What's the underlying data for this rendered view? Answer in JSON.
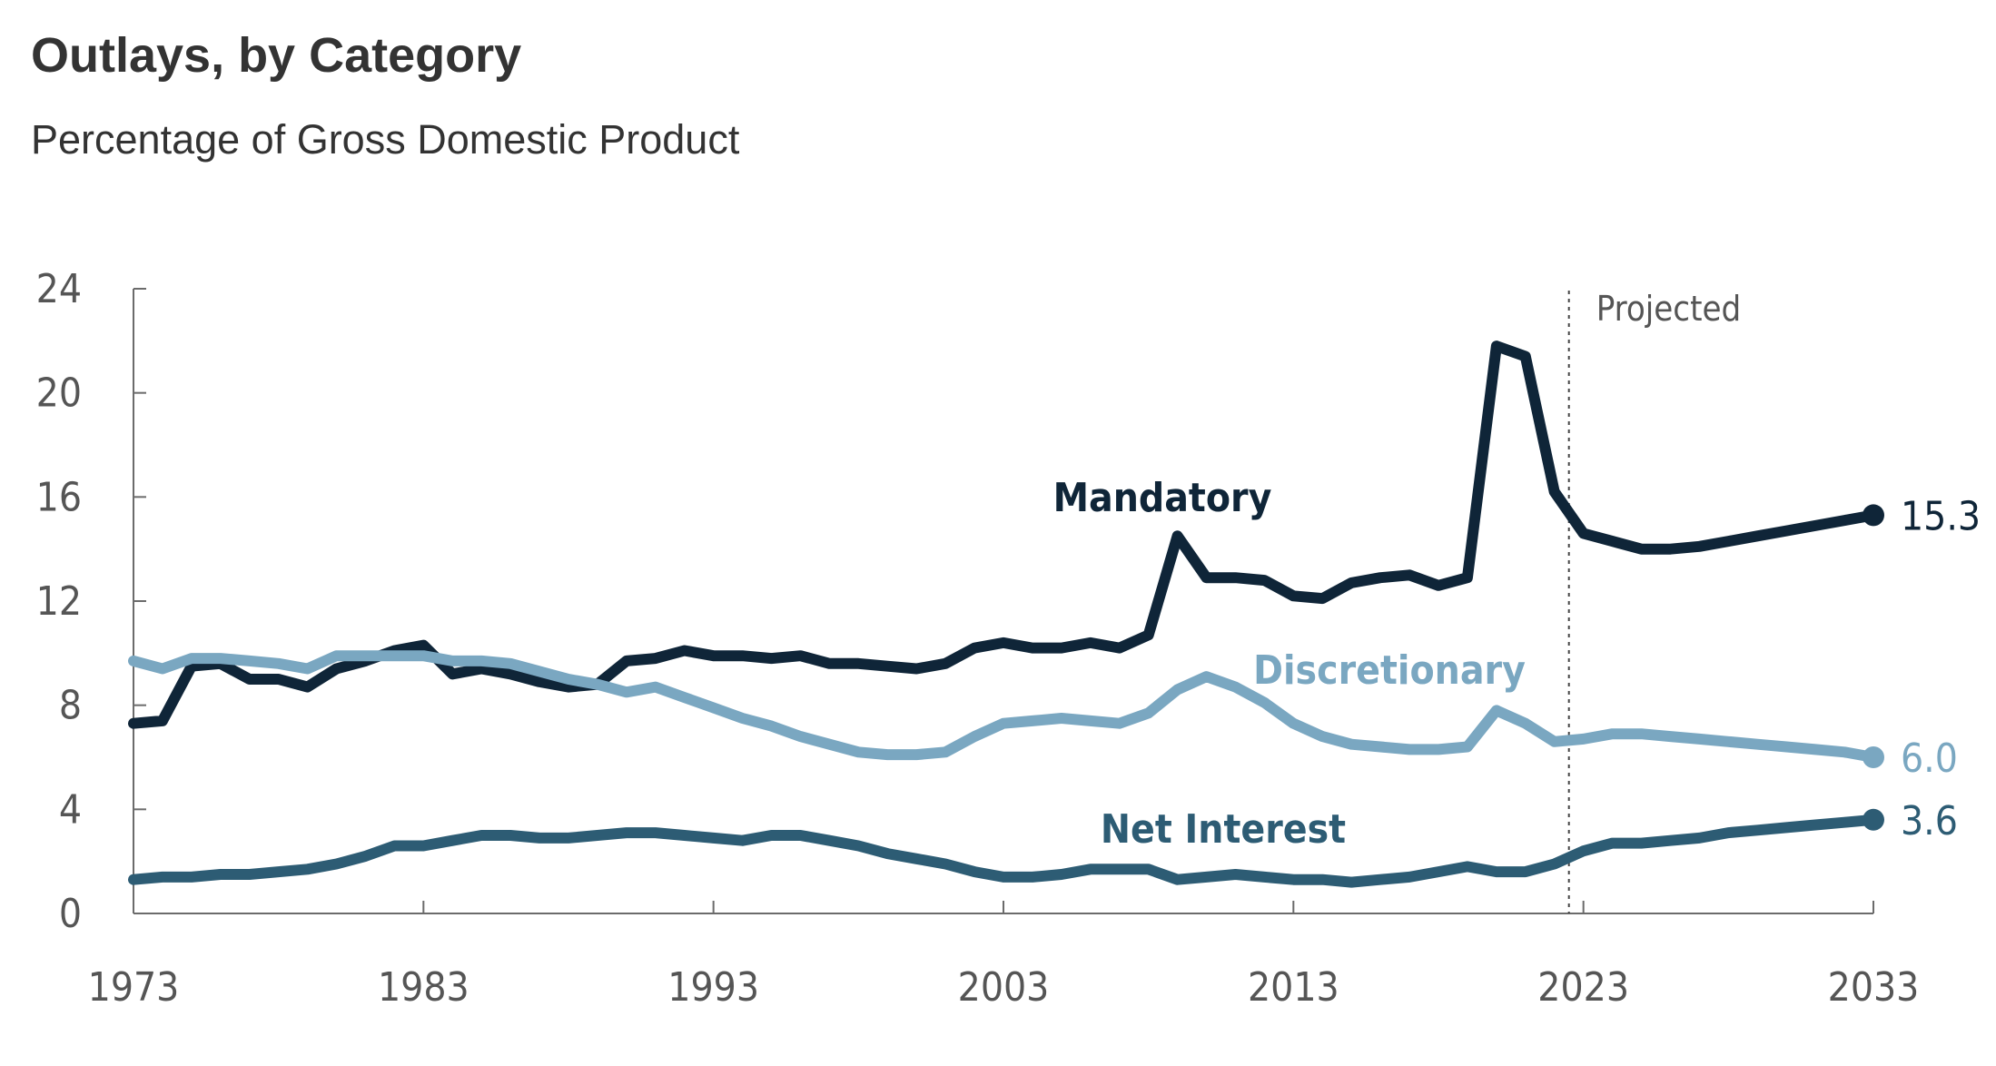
{
  "colors": {
    "mandatory": "#0f2538",
    "discretionary": "#7aa7c1",
    "net_interest": "#2d5c74"
  },
  "chart_data": {
    "type": "line",
    "title": "Outlays, by Category",
    "subtitle": "Percentage of Gross Domestic Product",
    "xlabel": "",
    "ylabel": "",
    "xlim": [
      1973,
      2033
    ],
    "ylim": [
      0,
      24
    ],
    "x_ticks": [
      1973,
      1983,
      1993,
      2003,
      2013,
      2023,
      2033
    ],
    "y_ticks": [
      0,
      4,
      8,
      12,
      16,
      20,
      24
    ],
    "projected_from": 2022.5,
    "projected_label": "Projected",
    "grid": false,
    "legend": "inline labels",
    "x": [
      1973,
      1974,
      1975,
      1976,
      1977,
      1978,
      1979,
      1980,
      1981,
      1982,
      1983,
      1984,
      1985,
      1986,
      1987,
      1988,
      1989,
      1990,
      1991,
      1992,
      1993,
      1994,
      1995,
      1996,
      1997,
      1998,
      1999,
      2000,
      2001,
      2002,
      2003,
      2004,
      2005,
      2006,
      2007,
      2008,
      2009,
      2010,
      2011,
      2012,
      2013,
      2014,
      2015,
      2016,
      2017,
      2018,
      2019,
      2020,
      2021,
      2022,
      2023,
      2024,
      2025,
      2026,
      2027,
      2028,
      2029,
      2030,
      2031,
      2032,
      2033
    ],
    "series": [
      {
        "name": "Mandatory",
        "color_key": "mandatory",
        "end_label": "15.3",
        "values": [
          7.3,
          7.4,
          9.5,
          9.6,
          9.0,
          9.0,
          8.7,
          9.4,
          9.7,
          10.1,
          10.3,
          9.2,
          9.4,
          9.2,
          8.9,
          8.7,
          8.8,
          9.7,
          9.8,
          10.1,
          9.9,
          9.9,
          9.8,
          9.9,
          9.6,
          9.6,
          9.5,
          9.4,
          9.6,
          10.2,
          10.4,
          10.2,
          10.2,
          10.4,
          10.2,
          10.7,
          14.5,
          12.9,
          12.9,
          12.8,
          12.2,
          12.1,
          12.7,
          12.9,
          13.0,
          12.6,
          12.9,
          21.8,
          21.4,
          16.2,
          14.6,
          14.3,
          14.0,
          14.0,
          14.1,
          14.3,
          14.5,
          14.7,
          14.9,
          15.1,
          15.3
        ]
      },
      {
        "name": "Discretionary",
        "color_key": "discretionary",
        "end_label": "6.0",
        "values": [
          9.7,
          9.4,
          9.8,
          9.8,
          9.7,
          9.6,
          9.4,
          9.9,
          9.9,
          9.9,
          9.9,
          9.7,
          9.7,
          9.6,
          9.3,
          9.0,
          8.8,
          8.5,
          8.7,
          8.3,
          7.9,
          7.5,
          7.2,
          6.8,
          6.5,
          6.2,
          6.1,
          6.1,
          6.2,
          6.8,
          7.3,
          7.4,
          7.5,
          7.4,
          7.3,
          7.7,
          8.6,
          9.1,
          8.7,
          8.1,
          7.3,
          6.8,
          6.5,
          6.4,
          6.3,
          6.3,
          6.4,
          7.8,
          7.3,
          6.6,
          6.7,
          6.9,
          6.9,
          6.8,
          6.7,
          6.6,
          6.5,
          6.4,
          6.3,
          6.2,
          6.0
        ]
      },
      {
        "name": "Net Interest",
        "color_key": "net_interest",
        "end_label": "3.6",
        "values": [
          1.3,
          1.4,
          1.4,
          1.5,
          1.5,
          1.6,
          1.7,
          1.9,
          2.2,
          2.6,
          2.6,
          2.8,
          3.0,
          3.0,
          2.9,
          2.9,
          3.0,
          3.1,
          3.1,
          3.0,
          2.9,
          2.8,
          3.0,
          3.0,
          2.8,
          2.6,
          2.3,
          2.1,
          1.9,
          1.6,
          1.4,
          1.4,
          1.5,
          1.7,
          1.7,
          1.7,
          1.3,
          1.4,
          1.5,
          1.4,
          1.3,
          1.3,
          1.2,
          1.3,
          1.4,
          1.6,
          1.8,
          1.6,
          1.6,
          1.9,
          2.4,
          2.7,
          2.7,
          2.8,
          2.9,
          3.1,
          3.2,
          3.3,
          3.4,
          3.5,
          3.6
        ]
      }
    ],
    "inline_labels": [
      {
        "text": "Mandatory",
        "color_key": "mandatory"
      },
      {
        "text": "Discretionary",
        "color_key": "discretionary"
      },
      {
        "text": "Net Interest",
        "color_key": "net_interest"
      }
    ]
  }
}
